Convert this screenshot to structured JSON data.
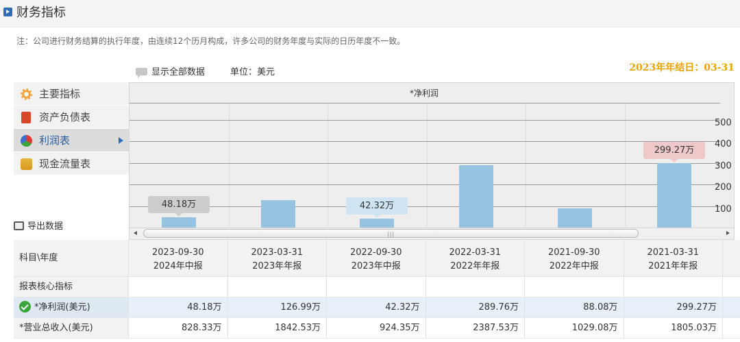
{
  "header": {
    "title": "财务指标"
  },
  "note": "注：公司进行财务结算的执行年度，由连续12个历月构成，许多公司的财务年度与实际的日历年度不一致。",
  "toolbar": {
    "show_all": "显示全部数据",
    "unit": "单位：美元",
    "fiscal_year_end": "2023年年结日：03-31"
  },
  "menu": {
    "items": [
      {
        "label": "主要指标",
        "icon": "gear-icon"
      },
      {
        "label": "资产负债表",
        "icon": "document-icon"
      },
      {
        "label": "利润表",
        "icon": "pie-chart-icon",
        "active": true
      },
      {
        "label": "现金流量表",
        "icon": "coins-icon"
      }
    ],
    "export": "导出数据"
  },
  "chart_data": {
    "type": "bar",
    "title": "*净利润",
    "categories": [
      "2023-09-30",
      "2023-03-31",
      "2022-09-30",
      "2022-03-31",
      "2021-09-30",
      "2021-03-31"
    ],
    "values": [
      48.18,
      126.99,
      42.32,
      289.76,
      88.08,
      299.27
    ],
    "yticks": [
      "100",
      "200",
      "300",
      "400",
      "500"
    ],
    "ylim": [
      0,
      580
    ],
    "data_labels": [
      {
        "index": 0,
        "text": "48.18万",
        "color": "#cdcdcd"
      },
      {
        "index": 2,
        "text": "42.32万",
        "color": "#cfe4f2"
      },
      {
        "index": 5,
        "text": "299.27万",
        "color": "#efc9c9"
      }
    ],
    "bar_color": "#95c3e0"
  },
  "table": {
    "corner": "科目\\年度",
    "columns": [
      {
        "date": "2023-09-30",
        "period": "2024年中报"
      },
      {
        "date": "2023-03-31",
        "period": "2023年年报"
      },
      {
        "date": "2022-09-30",
        "period": "2023年中报"
      },
      {
        "date": "2022-03-31",
        "period": "2022年年报"
      },
      {
        "date": "2021-09-30",
        "period": "2022年中报"
      },
      {
        "date": "2021-03-31",
        "period": "2021年年报"
      }
    ],
    "section": "报表核心指标",
    "rows": [
      {
        "label": "*净利润(美元)",
        "values": [
          "48.18万",
          "126.99万",
          "42.32万",
          "289.76万",
          "88.08万",
          "299.27万"
        ]
      },
      {
        "label": "*营业总收入(美元)",
        "values": [
          "828.33万",
          "1842.53万",
          "924.35万",
          "2387.53万",
          "1029.08万",
          "1805.03万"
        ]
      }
    ]
  }
}
